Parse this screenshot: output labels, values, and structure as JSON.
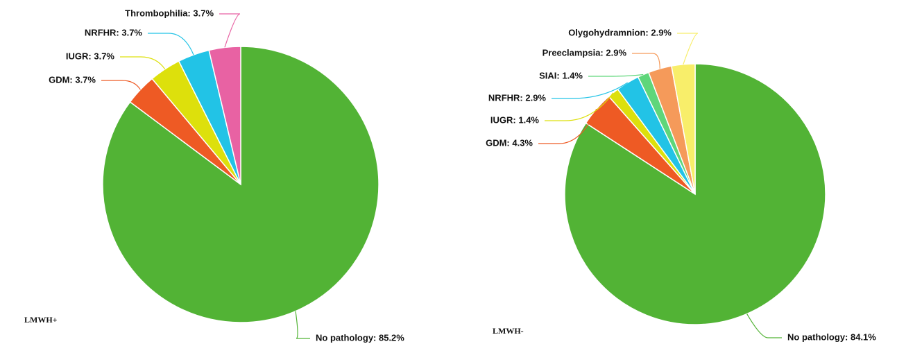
{
  "chart_data": [
    {
      "type": "pie",
      "title": "LMWH+",
      "labels": [
        "No pathology: 85.2%",
        "GDM: 3.7%",
        "IUGR: 3.7%",
        "NRFHR: 3.7%",
        "Thrombophilia: 3.7%"
      ],
      "values": [
        85.2,
        3.7,
        3.7,
        3.7,
        3.7
      ],
      "colors": [
        "#52b335",
        "#ee5a24",
        "#dde00c",
        "#22c3e6",
        "#e862a3"
      ]
    },
    {
      "type": "pie",
      "title": "LMWH-",
      "labels": [
        "No pathology: 84.1%",
        "GDM: 4.3%",
        "IUGR: 1.4%",
        "NRFHR: 2.9%",
        "SIAI: 1.4%",
        "Preeclampsia: 2.9%",
        "Olygohydramnion: 2.9%"
      ],
      "values": [
        84.1,
        4.3,
        1.4,
        2.9,
        1.4,
        2.9,
        2.9
      ],
      "colors": [
        "#52b335",
        "#ee5a24",
        "#dde00c",
        "#22c3e6",
        "#5fd67a",
        "#f59a5a",
        "#f8ee6a"
      ]
    }
  ]
}
